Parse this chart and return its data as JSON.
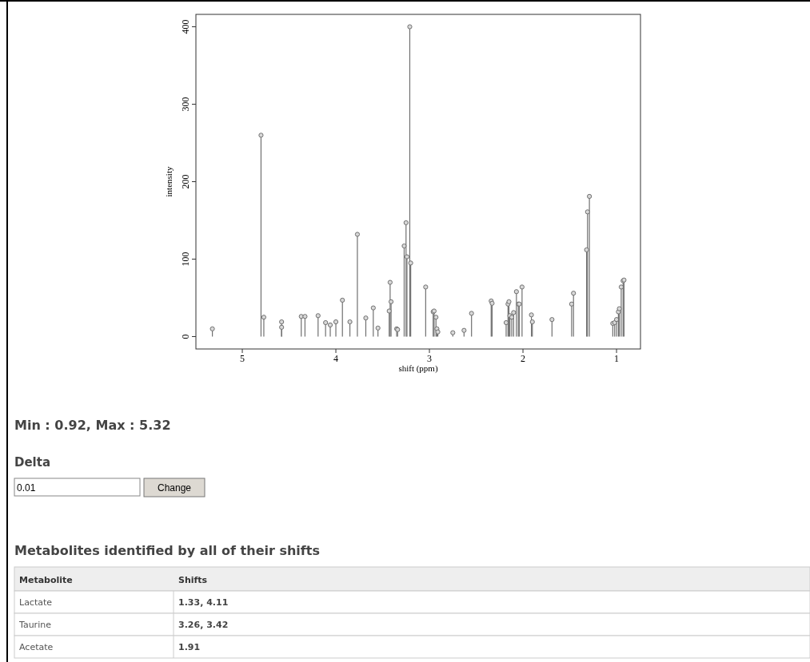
{
  "chart_data": [
    {
      "type": "lollipop",
      "xlabel": "shift (ppm)",
      "ylabel": "intensity",
      "xlim": [
        5.496,
        0.744
      ],
      "xticks": [
        5,
        4,
        3,
        2,
        1
      ],
      "ylim": [
        -16,
        416
      ],
      "yticks": [
        0,
        100,
        200,
        300,
        400
      ],
      "grid": false,
      "marker": "circle",
      "series": [
        {
          "color": "#707070",
          "x": [
            5.32,
            4.8,
            4.77,
            4.58,
            4.58,
            4.37,
            4.33,
            4.19,
            4.11,
            4.06,
            4.0,
            3.93,
            3.85,
            3.77,
            3.68,
            3.6,
            3.55,
            3.43,
            3.42,
            3.41,
            3.35,
            3.34,
            3.27,
            3.25,
            3.24,
            3.21,
            3.2,
            3.04,
            2.96,
            2.95,
            2.93,
            2.92,
            2.91,
            2.75,
            2.63,
            2.55,
            2.34,
            2.33,
            2.18,
            2.16,
            2.15,
            2.14,
            2.12,
            2.1,
            2.07,
            2.05,
            2.04,
            2.01,
            1.91,
            1.9,
            1.69,
            1.48,
            1.46,
            1.32,
            1.31,
            1.29,
            1.04,
            1.02,
            1.0,
            0.98,
            0.97,
            0.95,
            0.93,
            0.92
          ],
          "values": [
            10,
            260,
            25,
            19,
            12,
            26,
            26,
            27,
            18,
            15,
            19,
            47,
            19,
            132,
            24,
            37,
            11,
            33,
            70,
            45,
            10,
            9,
            117,
            147,
            103,
            400,
            95,
            64,
            32,
            33,
            25,
            10,
            6,
            5,
            8,
            30,
            46,
            43,
            18,
            42,
            45,
            27,
            25,
            31,
            58,
            42,
            42,
            64,
            28,
            19,
            22,
            42,
            56,
            112,
            161,
            181,
            17,
            18,
            22,
            32,
            36,
            64,
            72,
            73
          ]
        }
      ]
    },
    {
      "type": "other",
      "annotations": [
        "Min : 0.92, Max : 5.32",
        "Delta",
        "0.01",
        "Change",
        "Metabolites identified by all of their shifts",
        "Metabolite",
        "Shifts",
        "Lactate",
        "1.33, 4.11",
        "Taurine",
        "3.26, 3.42",
        "Acetate",
        "1.91"
      ]
    }
  ]
}
